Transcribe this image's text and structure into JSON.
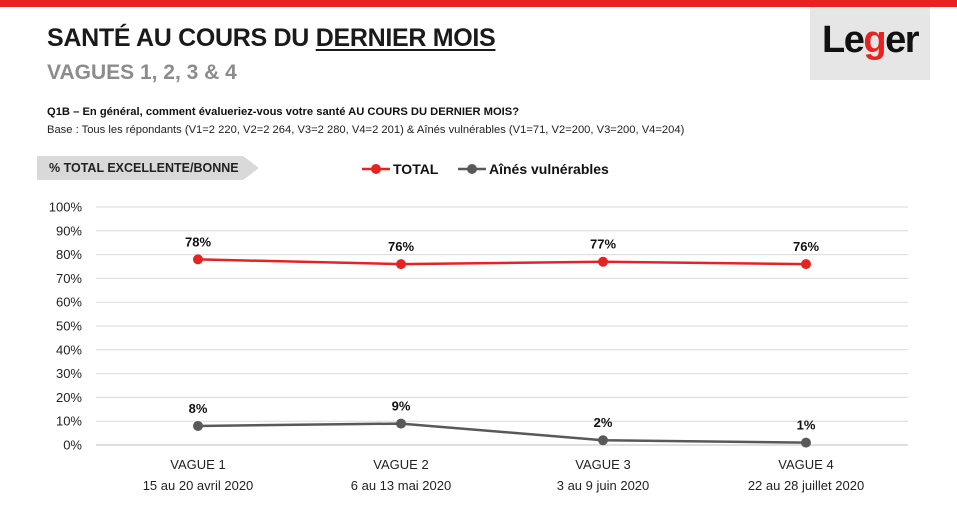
{
  "header": {
    "title_part1": "SANTÉ AU COURS DU ",
    "title_part2": "DERNIER MOIS",
    "subtitle": "VAGUES 1, 2, 3 & 4",
    "logo_text_1": "Le",
    "logo_text_g": "g",
    "logo_text_2": "er"
  },
  "question": "Q1B – En général, comment évalueriez-vous votre santé AU COURS DU DERNIER MOIS?",
  "base": "Base : Tous les répondants (V1=2 220, V2=2 264, V3=2 280, V4=2 201) & Aînés vulnérables (V1=71, V2=200, V3=200, V4=204)",
  "metric_label": "% TOTAL EXCELLENTE/BONNE",
  "colors": {
    "brand_red": "#e52421",
    "series_total": "#e52421",
    "series_aines": "#595959"
  },
  "chart_data": {
    "type": "line",
    "categories": [
      "VAGUE 1",
      "VAGUE 2",
      "VAGUE 3",
      "VAGUE 4"
    ],
    "category_dates": [
      "15 au 20 avril 2020",
      "6 au 13 mai 2020",
      "3 au 9 juin 2020",
      "22 au 28 juillet 2020"
    ],
    "series": [
      {
        "name": "TOTAL",
        "values": [
          78,
          76,
          77,
          76
        ],
        "labels": [
          "78%",
          "76%",
          "77%",
          "76%"
        ],
        "color": "#e52421"
      },
      {
        "name": "Aînés vulnérables",
        "values": [
          8,
          9,
          2,
          1
        ],
        "labels": [
          "8%",
          "9%",
          "2%",
          "1%"
        ],
        "color": "#595959"
      }
    ],
    "y_ticks": [
      "0%",
      "10%",
      "20%",
      "30%",
      "40%",
      "50%",
      "60%",
      "70%",
      "80%",
      "90%",
      "100%"
    ],
    "ylim": [
      0,
      100
    ],
    "grid": true,
    "legend_position": "top-center"
  }
}
